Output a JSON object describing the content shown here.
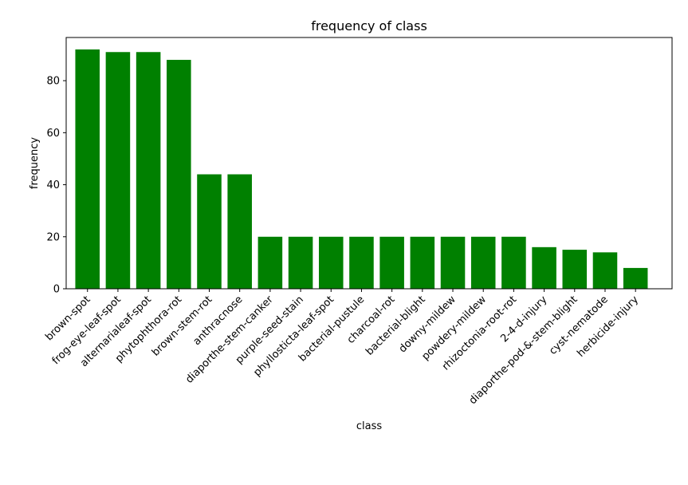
{
  "chart_data": {
    "type": "bar",
    "title": "frequency of class",
    "xlabel": "class",
    "ylabel": "frequency",
    "categories": [
      "brown-spot",
      "frog-eye-leaf-spot",
      "alternarialeaf-spot",
      "phytophthora-rot",
      "brown-stem-rot",
      "anthracnose",
      "diaporthe-stem-canker",
      "purple-seed-stain",
      "phyllosticta-leaf-spot",
      "bacterial-pustule",
      "charcoal-rot",
      "bacterial-blight",
      "downy-mildew",
      "powdery-mildew",
      "rhizoctonia-root-rot",
      "2-4-d-injury",
      "diaporthe-pod-&-stem-blight",
      "cyst-nematode",
      "herbicide-injury"
    ],
    "values": [
      92,
      91,
      91,
      88,
      44,
      44,
      20,
      20,
      20,
      20,
      20,
      20,
      20,
      20,
      20,
      16,
      15,
      14,
      8
    ],
    "ylim": [
      0,
      96.6
    ],
    "yticks": [
      0,
      20,
      40,
      60,
      80
    ],
    "bar_color": "#008000",
    "grid": false,
    "legend": "none"
  }
}
